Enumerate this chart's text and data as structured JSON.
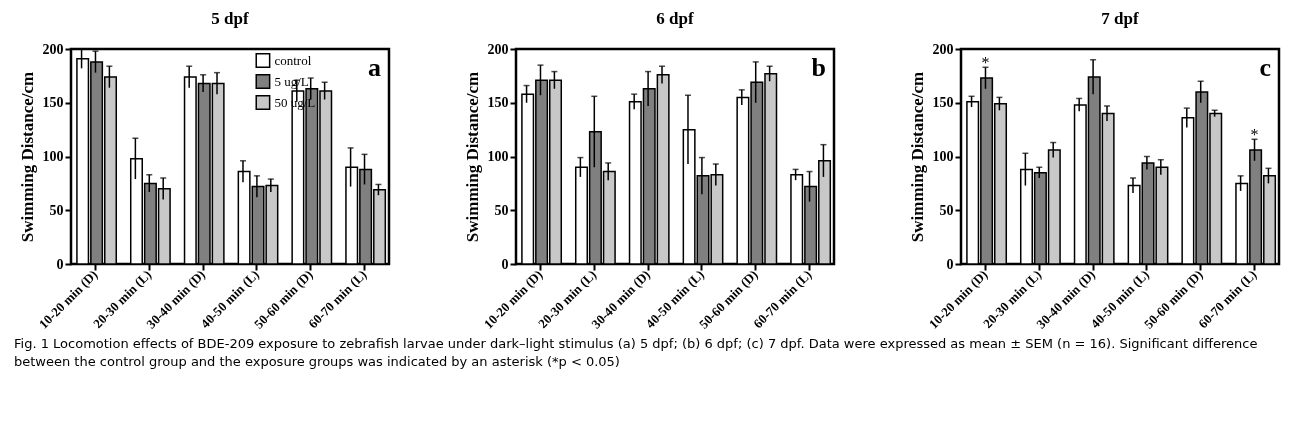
{
  "chart_data": [
    {
      "type": "bar",
      "title": "5 dpf",
      "ylabel": "Swimming Distance/cm",
      "categories": [
        "10-20 min (D)",
        "20-30 min (L)",
        "30-40 min (D)",
        "40-50 min (L)",
        "50-60 min (D)",
        "60-70 min (L)"
      ],
      "ylim": [
        0,
        200
      ],
      "yticks": [
        0,
        50,
        100,
        150,
        200
      ],
      "grid": false,
      "legend": "top",
      "annotations": [
        "a",
        "Fig. 1  Locomotion effects of BDE-209 exposure to zebrafish larvae under dark–light stimulus (a) 5 dpf; (b) 6 dpf; (c) 7 dpf. Data were expressed as mean ± SEM (n = 16). Significant difference between the control group and the exposure groups was indicated by an asterisk (*p < 0.05)"
      ],
      "series": [
        {
          "name": "control",
          "color": "#ffffff",
          "values": [
            191,
            98,
            174,
            86,
            161,
            90
          ],
          "errors": [
            9,
            19,
            10,
            10,
            10,
            18
          ]
        },
        {
          "name": "5   ug/L",
          "color": "#808080",
          "values": [
            188,
            75,
            168,
            72,
            163,
            88
          ],
          "errors": [
            10,
            8,
            8,
            10,
            10,
            14
          ]
        },
        {
          "name": "50 ug/L",
          "color": "#c8c8c8",
          "values": [
            174,
            70,
            168,
            73,
            161,
            69
          ],
          "errors": [
            10,
            10,
            10,
            6,
            8,
            5
          ]
        }
      ]
    },
    {
      "type": "bar",
      "title": "6 dpf",
      "ylabel": "Swimming Distance/cm",
      "categories": [
        "10-20 min (D)",
        "20-30 min (L)",
        "30-40 min (D)",
        "40-50 min (L)",
        "50-60 min (D)",
        "60-70 min (L)"
      ],
      "ylim": [
        0,
        200
      ],
      "yticks": [
        0,
        50,
        100,
        150,
        200
      ],
      "grid": false,
      "annotations": [
        "b"
      ],
      "series": [
        {
          "color": "#ffffff",
          "values": [
            158,
            90,
            151,
            125,
            155,
            83
          ],
          "errors": [
            8,
            9,
            7,
            32,
            7,
            5
          ]
        },
        {
          "color": "#808080",
          "values": [
            171,
            123,
            163,
            82,
            169,
            72
          ],
          "errors": [
            14,
            33,
            16,
            17,
            19,
            14
          ]
        },
        {
          "color": "#c8c8c8",
          "values": [
            171,
            86,
            176,
            83,
            177,
            96
          ],
          "errors": [
            8,
            8,
            8,
            10,
            7,
            15
          ]
        }
      ]
    },
    {
      "type": "bar",
      "title": "7 dpf",
      "ylabel": "Swimming Distance/cm",
      "categories": [
        "10-20 min (D)",
        "20-30 min (L)",
        "30-40 min (D)",
        "40-50 min (L)",
        "50-60 min (D)",
        "60-70 min (L)"
      ],
      "ylim": [
        0,
        200
      ],
      "yticks": [
        0,
        50,
        100,
        150,
        200
      ],
      "grid": false,
      "annotations": [
        "c",
        {
          "text": "*",
          "x": "10-20 min (D)",
          "y": 173
        },
        {
          "text": "*",
          "x": "60-70 min (L)",
          "y": 106
        }
      ],
      "series": [
        {
          "color": "#ffffff",
          "values": [
            151,
            88,
            148,
            73,
            136,
            75
          ],
          "errors": [
            5,
            15,
            6,
            7,
            9,
            7
          ]
        },
        {
          "color": "#808080",
          "values": [
            173,
            85,
            174,
            94,
            160,
            106
          ],
          "errors": [
            10,
            5,
            16,
            6,
            10,
            10
          ]
        },
        {
          "color": "#c8c8c8",
          "values": [
            149,
            106,
            140,
            90,
            140,
            82
          ],
          "errors": [
            6,
            7,
            7,
            7,
            3,
            7
          ]
        }
      ]
    }
  ]
}
